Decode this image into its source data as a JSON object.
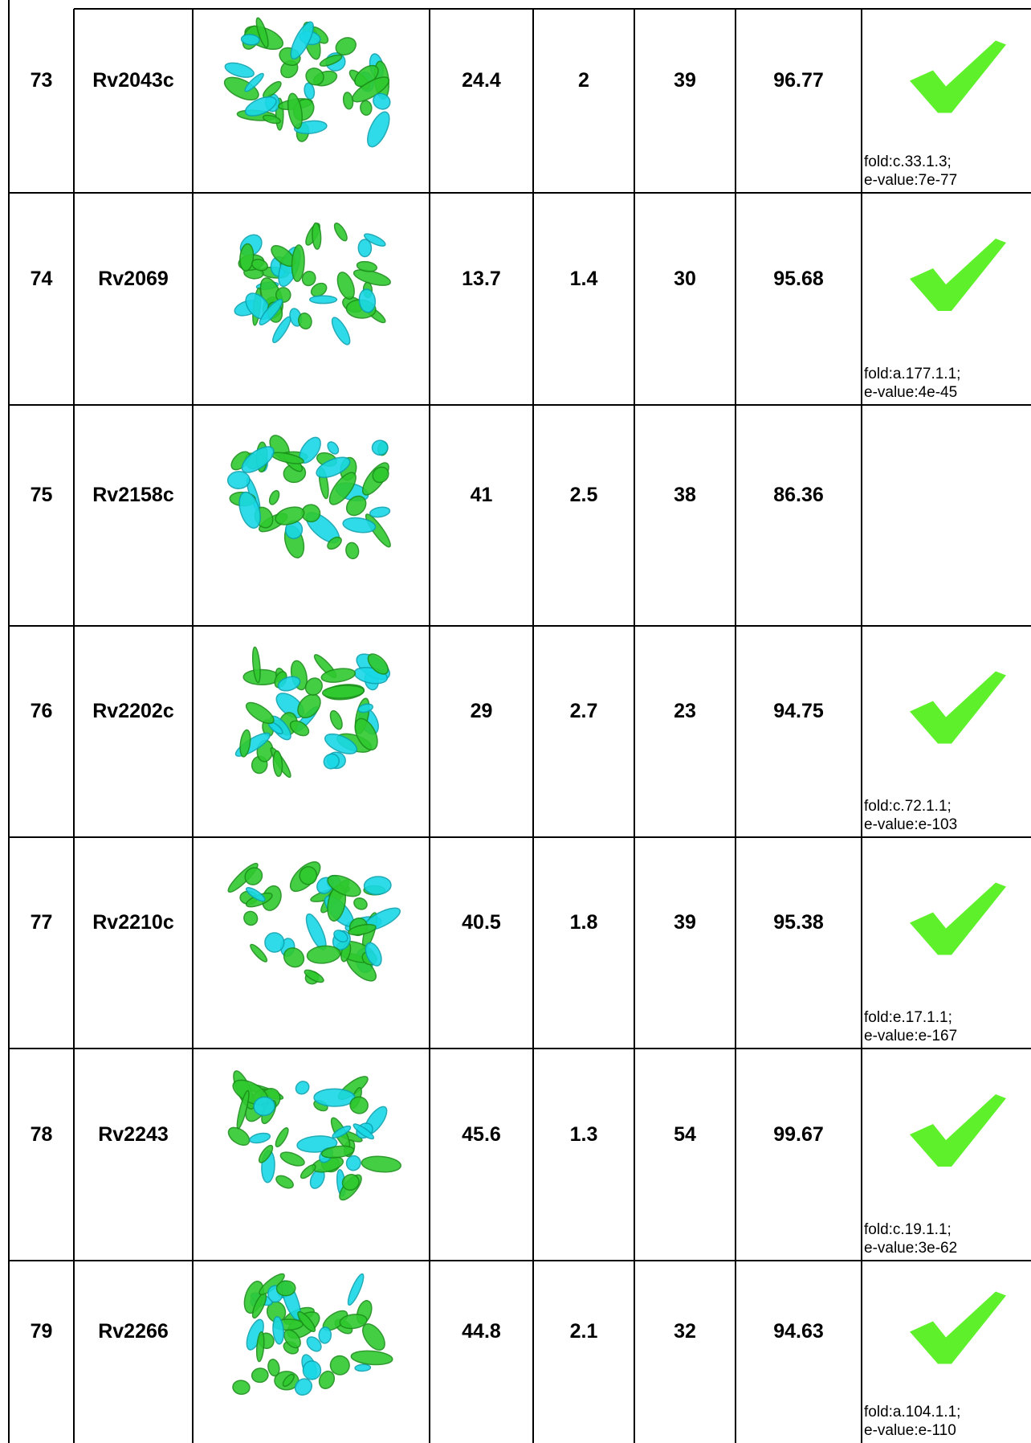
{
  "table": {
    "rows": [
      {
        "id": 73,
        "name": "Rv2043c",
        "values": [
          24.4,
          2,
          39,
          96.77
        ],
        "fold": [
          "fold:c.33.1.3;",
          "e-value:7e-77"
        ]
      },
      {
        "id": 74,
        "name": "Rv2069",
        "values": [
          13.7,
          1.4,
          30,
          95.68
        ],
        "fold": [
          "fold:a.177.1.1;",
          "e-value:4e-45"
        ]
      },
      {
        "id": 75,
        "name": "Rv2158c",
        "values": [
          41,
          2.5,
          38,
          86.36
        ],
        "fold": []
      },
      {
        "id": 76,
        "name": "Rv2202c",
        "values": [
          29,
          2.7,
          23,
          94.75
        ],
        "fold": [
          "fold:c.72.1.1;",
          "e-value:e-103"
        ]
      },
      {
        "id": 77,
        "name": "Rv2210c",
        "values": [
          40.5,
          1.8,
          39,
          95.38
        ],
        "fold": [
          "fold:e.17.1.1;",
          "e-value:e-167"
        ]
      },
      {
        "id": 78,
        "name": "Rv2243",
        "values": [
          45.6,
          1.3,
          54,
          99.67
        ],
        "fold": [
          "fold:c.19.1.1;",
          "e-value:3e-62"
        ]
      },
      {
        "id": 79,
        "name": "Rv2266",
        "values": [
          44.8,
          2.1,
          32,
          94.63
        ],
        "fold": [
          "fold:a.104.1.1;",
          "e-value:e-110"
        ]
      }
    ]
  }
}
